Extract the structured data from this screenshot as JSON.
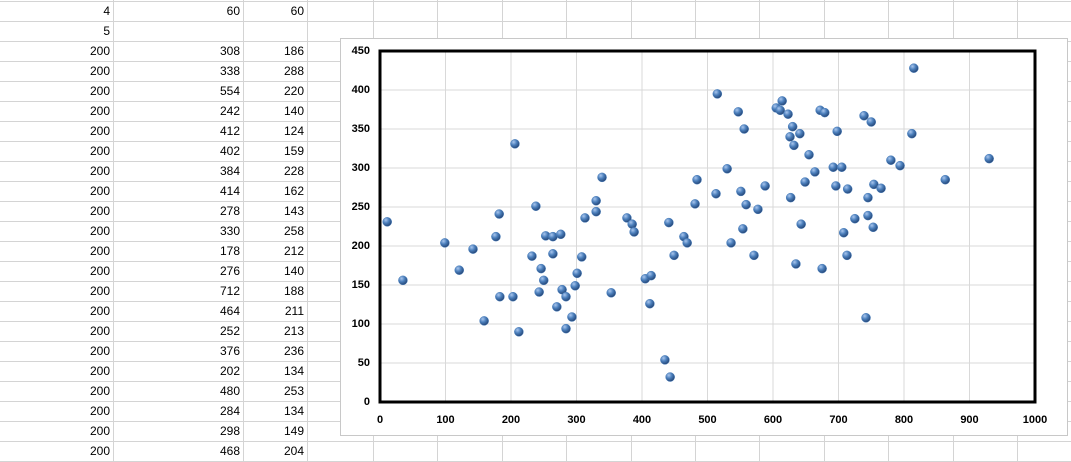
{
  "sheet": {
    "rows": [
      [
        4,
        60,
        60
      ],
      [
        5
      ],
      [
        200,
        308,
        186
      ],
      [
        200,
        338,
        288
      ],
      [
        200,
        554,
        220
      ],
      [
        200,
        242,
        140
      ],
      [
        200,
        412,
        124
      ],
      [
        200,
        402,
        159
      ],
      [
        200,
        384,
        228
      ],
      [
        200,
        414,
        162
      ],
      [
        200,
        278,
        143
      ],
      [
        200,
        330,
        258
      ],
      [
        200,
        178,
        212
      ],
      [
        200,
        276,
        140
      ],
      [
        200,
        712,
        188
      ],
      [
        200,
        464,
        211
      ],
      [
        200,
        252,
        213
      ],
      [
        200,
        376,
        236
      ],
      [
        200,
        202,
        134
      ],
      [
        200,
        480,
        253
      ],
      [
        200,
        284,
        134
      ],
      [
        200,
        298,
        149
      ],
      [
        200,
        468,
        204
      ]
    ]
  },
  "chart_data": {
    "type": "scatter",
    "color": "#4a7ebb",
    "grid": true,
    "xlim": [
      0,
      1000
    ],
    "xticks": [
      0,
      100,
      200,
      300,
      400,
      500,
      600,
      700,
      800,
      900,
      1000
    ],
    "ylim": [
      0,
      450
    ],
    "yticks": [
      0,
      50,
      100,
      150,
      200,
      250,
      300,
      350,
      400,
      450
    ],
    "x": [
      11,
      35,
      99,
      121,
      142,
      159,
      177,
      182,
      183,
      203,
      206,
      212,
      232,
      238,
      243,
      246,
      250,
      253,
      264,
      264,
      270,
      276,
      278,
      284,
      284,
      293,
      298,
      301,
      308,
      313,
      330,
      330,
      339,
      353,
      377,
      385,
      388,
      405,
      414,
      412,
      441,
      435,
      443,
      449,
      464,
      469,
      481,
      484,
      513,
      515,
      530,
      536,
      547,
      551,
      554,
      556,
      559,
      571,
      577,
      588,
      605,
      611,
      614,
      623,
      626,
      627,
      630,
      632,
      635,
      641,
      643,
      649,
      655,
      664,
      672,
      679,
      675,
      692,
      698,
      696,
      705,
      708,
      713,
      714,
      725,
      739,
      742,
      745,
      745,
      750,
      753,
      754,
      765,
      780,
      794,
      812,
      815,
      863,
      930
    ],
    "values": [
      231,
      156,
      204,
      169,
      196,
      104,
      212,
      241,
      135,
      135,
      331,
      90,
      187,
      251,
      141,
      171,
      156,
      213,
      212,
      190,
      122,
      215,
      144,
      135,
      94,
      109,
      149,
      165,
      186,
      236,
      244,
      258,
      288,
      140,
      236,
      228,
      218,
      158,
      162,
      126,
      230,
      54,
      32,
      188,
      212,
      204,
      254,
      285,
      267,
      395,
      299,
      204,
      372,
      270,
      222,
      350,
      253,
      188,
      247,
      277,
      377,
      374,
      386,
      369,
      340,
      262,
      353,
      329,
      177,
      344,
      228,
      282,
      317,
      295,
      374,
      371,
      171,
      301,
      347,
      277,
      301,
      217,
      188,
      273,
      235,
      367,
      108,
      239,
      262,
      359,
      224,
      279,
      274,
      310,
      303,
      344,
      428,
      285,
      312
    ]
  }
}
